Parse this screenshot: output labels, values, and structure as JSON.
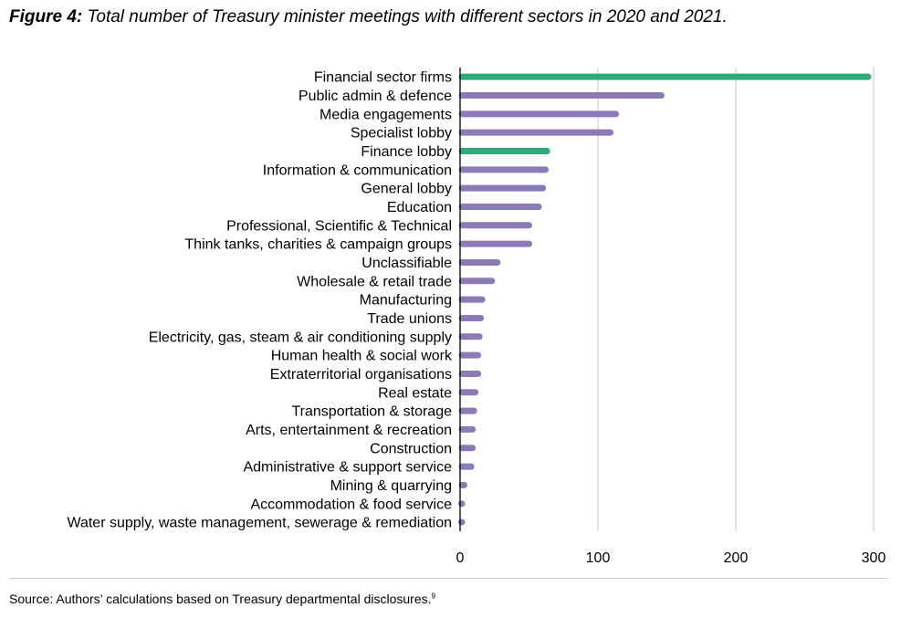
{
  "figure": {
    "label": "Figure 4:",
    "caption": "Total number of Treasury minister meetings with different sectors in 2020 and 2021.",
    "source_text": "Source: Authors’ calculations based on Treasury departmental disclosures.",
    "source_footnote": "9"
  },
  "colors": {
    "highlight": "#2eaa78",
    "base": "#8c7ab4",
    "grid": "#d0d0d0",
    "axis": "#000000"
  },
  "chart_data": {
    "type": "bar",
    "orientation": "horizontal",
    "title": "Total number of Treasury minister meetings with different sectors in 2020 and 2021.",
    "xlabel": "",
    "ylabel": "",
    "xlim": [
      0,
      300
    ],
    "xticks": [
      0,
      100,
      200,
      300
    ],
    "grid": true,
    "categories": [
      "Financial sector firms",
      "Public admin & defence",
      "Media engagements",
      "Specialist lobby",
      "Finance lobby",
      "Information & communication",
      "General lobby",
      "Education",
      "Professional, Scientific & Technical",
      "Think tanks, charities & campaign groups",
      "Unclassifiable",
      "Wholesale & retail trade",
      "Manufacturing",
      "Trade unions",
      "Electricity, gas, steam & air conditioning supply",
      "Human health & social work",
      "Extraterritorial organisations",
      "Real estate",
      "Transportation & storage",
      "Arts, entertainment & recreation",
      "Construction",
      "Administrative & support service",
      "Mining & quarrying",
      "Accommodation & food service",
      "Water supply, waste management, sewerage & remediation"
    ],
    "values": [
      296,
      146,
      113,
      109,
      63,
      62,
      60,
      57,
      50,
      50,
      27,
      23,
      16,
      15,
      14,
      13,
      13,
      11,
      10,
      9,
      9,
      8,
      3,
      1,
      0.5
    ],
    "highlighted": [
      true,
      false,
      false,
      false,
      true,
      false,
      false,
      false,
      false,
      false,
      false,
      false,
      false,
      false,
      false,
      false,
      false,
      false,
      false,
      false,
      false,
      false,
      false,
      false,
      false
    ]
  }
}
